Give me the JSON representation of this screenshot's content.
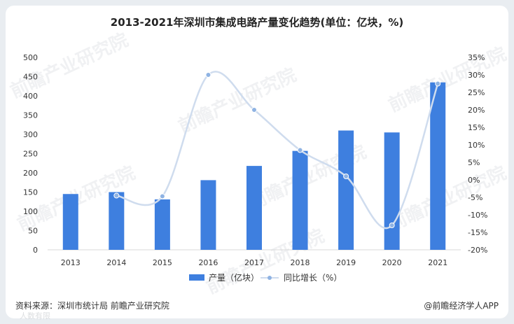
{
  "chart_data": {
    "type": "bar",
    "title": "2013-2021年深圳市集成电路产量变化趋势(单位：亿块，%)",
    "categories": [
      "2013",
      "2014",
      "2015",
      "2016",
      "2017",
      "2018",
      "2019",
      "2020",
      "2021"
    ],
    "series": [
      {
        "name": "产量（亿块）",
        "type": "bar",
        "axis": "left",
        "color": "#3e7fdf",
        "values": [
          145,
          150,
          131,
          181,
          218,
          257,
          310,
          305,
          435
        ]
      },
      {
        "name": "同比增长（%）",
        "type": "line",
        "axis": "right",
        "color": "#cfdcee",
        "marker_color": "#8fb3e3",
        "values": [
          null,
          -4.5,
          -4.7,
          30,
          20,
          8.5,
          1,
          -13,
          27.5
        ]
      }
    ],
    "y_left": {
      "min": 0,
      "max": 500,
      "step": 50,
      "tick_labels": [
        "0",
        "50",
        "100",
        "150",
        "200",
        "250",
        "300",
        "350",
        "400",
        "450",
        "500"
      ]
    },
    "y_right": {
      "min": -20,
      "max": 35,
      "step": 5,
      "tick_labels": [
        "-20%",
        "-15%",
        "-10%",
        "-5%",
        "0%",
        "5%",
        "10%",
        "15%",
        "20%",
        "25%",
        "30%",
        "35%"
      ]
    },
    "legend_position": "bottom-center",
    "grid": false
  },
  "footer": {
    "source": "资料来源：深圳市统计局 前瞻产业研究院",
    "brand": "@前瞻经济学人APP"
  },
  "watermarks": {
    "primary": "前瞻产业研究院",
    "secondary": "人数有限"
  }
}
